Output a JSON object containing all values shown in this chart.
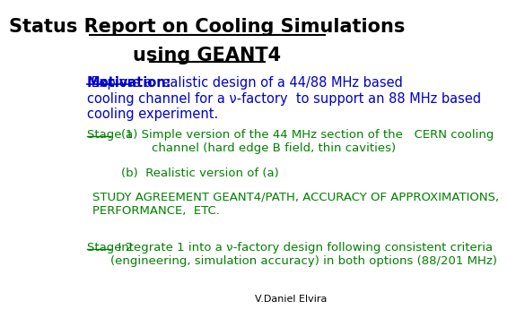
{
  "title_line1": "Status Report on Cooling Simulations",
  "title_line2": "using GEANT4",
  "title_color": "#000000",
  "title_fontsize": 15,
  "bg_color": "#ffffff",
  "motivation_label": "Motivation:",
  "motivation_label_color": "#0000cc",
  "motivation_text": " Explore a realistic design of a 44/88 MHz based\ncooling channel for a ν-factory  to support an 88 MHz based\ncooling experiment.",
  "motivation_text_color": "#0000cc",
  "motivation_fontsize": 10.5,
  "stage1_label": "Stage 1",
  "stage1_label_color": "#008000",
  "stage1_a_text": "(a) Simple version of the 44 MHz section of the   CERN cooling\n        channel (hard edge B field, thin cavities)",
  "stage1_b_text": "(b)  Realistic version of (a)",
  "stage1_color": "#008000",
  "stage1_fontsize": 9.5,
  "study_text": "STUDY AGREEMENT GEANT4/PATH, ACCURACY OF APPROXIMATIONS,\nPERFORMANCE,  ETC.",
  "study_color": "#008000",
  "study_fontsize": 9.5,
  "stage2_label": "Stage 2",
  "stage2_label_color": "#008000",
  "stage2_text": "  Integrate 1 into a ν-factory design following consistent criteria\n(engineering, simulation accuracy) in both options (88/201 MHz)",
  "stage2_color": "#008000",
  "stage2_fontsize": 9.5,
  "author": "V.Daniel Elvira",
  "author_color": "#000000",
  "author_fontsize": 8
}
